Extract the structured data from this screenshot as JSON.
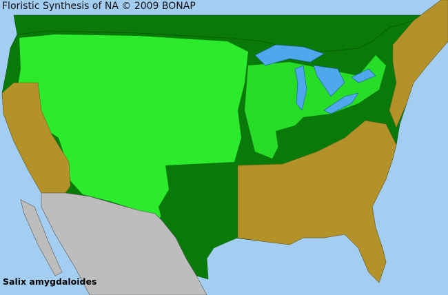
{
  "header": {
    "title": "Floristic Synthesis of NA © 2009 BONAP"
  },
  "species": {
    "name": "Salix amygdaloides"
  },
  "colors": {
    "ocean": "#a4cdf2",
    "lakes": "#4fa8ec",
    "present_native_state": "#097a09",
    "present_county": "#33ff33",
    "absent_state": "#b3922a",
    "outside_range": "#bdbdbd"
  }
}
